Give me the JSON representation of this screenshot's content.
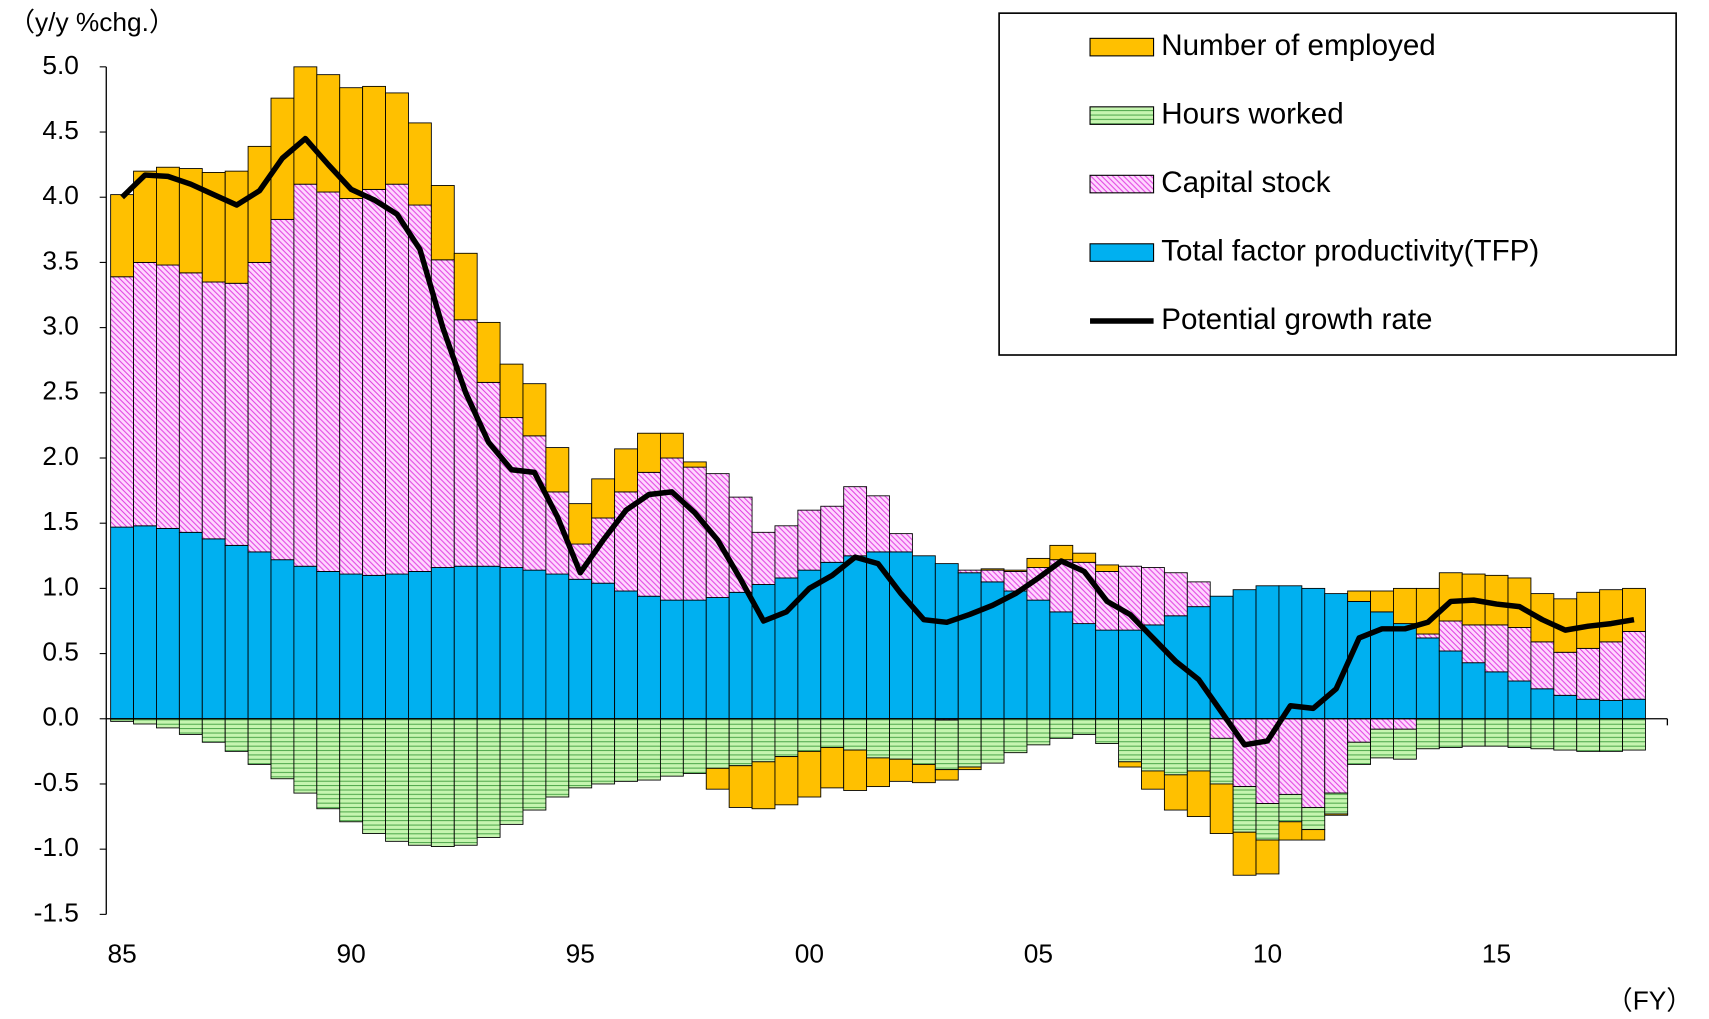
{
  "chart_data": {
    "type": "bar",
    "y_label": "（y/y %chg.）",
    "x_label": "（FY）",
    "categories": [
      "85",
      null,
      null,
      null,
      null,
      null,
      null,
      null,
      null,
      null,
      "90",
      null,
      null,
      null,
      null,
      null,
      null,
      null,
      null,
      null,
      "95",
      null,
      null,
      null,
      null,
      null,
      null,
      null,
      null,
      null,
      "00",
      null,
      null,
      null,
      null,
      null,
      null,
      null,
      null,
      null,
      "05",
      null,
      null,
      null,
      null,
      null,
      null,
      null,
      null,
      null,
      "10",
      null,
      null,
      null,
      null,
      null,
      null,
      null,
      null,
      null,
      "15",
      null,
      null,
      null,
      null,
      null,
      null
    ],
    "ylim": [
      -1.5,
      5
    ],
    "yticks": [
      {
        "value": 5,
        "label": "5.0"
      },
      4.5,
      {
        "value": 4,
        "label": "4.0"
      },
      3.5,
      {
        "value": 3,
        "label": "3.0"
      },
      2.5,
      {
        "value": 2,
        "label": "2.0"
      },
      1.5,
      {
        "value": 1,
        "label": "1.0"
      },
      0.5,
      {
        "value": 0,
        "label": "0.0"
      },
      -0.5,
      {
        "value": -1,
        "label": "-1.0"
      },
      -1.5
    ],
    "legend": "upper right",
    "series": [
      {
        "name": "Number of employed",
        "type": "bar",
        "color": "#FFC000",
        "values": [
          0.63,
          0.7,
          0.75,
          0.8,
          0.84,
          0.86,
          0.89,
          0.93,
          0.9,
          0.9,
          0.85,
          0.79,
          0.7,
          0.63,
          0.57,
          0.51,
          0.46,
          0.41,
          0.4,
          0.34,
          0.31,
          0.3,
          0.33,
          0.3,
          0.19,
          0.04,
          -0.16,
          -0.32,
          -0.36,
          -0.37,
          -0.35,
          -0.31,
          -0.31,
          -0.22,
          -0.17,
          -0.14,
          -0.08,
          -0.02,
          0.01,
          0.01,
          0.07,
          0.11,
          0.07,
          0.05,
          -0.04,
          -0.14,
          -0.27,
          -0.35,
          -0.38,
          -0.33,
          -0.26,
          -0.14,
          -0.08,
          -0.01,
          0.08,
          0.16,
          0.27,
          0.35,
          0.37,
          0.39,
          0.38,
          0.38,
          0.37,
          0.41,
          0.43,
          0.4,
          0.33
        ]
      },
      {
        "name": "Hours worked",
        "type": "bar",
        "color": "#C6F5B0",
        "values": [
          -0.02,
          -0.04,
          -0.07,
          -0.12,
          -0.18,
          -0.25,
          -0.35,
          -0.46,
          -0.57,
          -0.69,
          -0.79,
          -0.88,
          -0.94,
          -0.97,
          -0.98,
          -0.97,
          -0.91,
          -0.81,
          -0.7,
          -0.6,
          -0.53,
          -0.5,
          -0.48,
          -0.47,
          -0.44,
          -0.42,
          -0.38,
          -0.36,
          -0.33,
          -0.29,
          -0.25,
          -0.22,
          -0.24,
          -0.3,
          -0.31,
          -0.35,
          -0.38,
          -0.37,
          -0.34,
          -0.26,
          -0.2,
          -0.15,
          -0.12,
          -0.19,
          -0.33,
          -0.4,
          -0.43,
          -0.4,
          -0.35,
          -0.35,
          -0.28,
          -0.21,
          -0.17,
          -0.16,
          -0.17,
          -0.22,
          -0.23,
          -0.23,
          -0.22,
          -0.21,
          -0.21,
          -0.22,
          -0.23,
          -0.24,
          -0.25,
          -0.25,
          -0.24
        ]
      },
      {
        "name": "Capital stock",
        "type": "bar",
        "color": "#FFD6FF",
        "values": [
          1.92,
          2.02,
          2.02,
          1.99,
          1.97,
          2.01,
          2.22,
          2.61,
          2.93,
          2.91,
          2.88,
          2.96,
          2.99,
          2.81,
          2.36,
          1.89,
          1.41,
          1.15,
          1.03,
          0.63,
          0.27,
          0.5,
          0.76,
          0.95,
          1.09,
          1.02,
          0.95,
          0.73,
          0.4,
          0.4,
          0.46,
          0.43,
          0.53,
          0.43,
          0.14,
          0.0,
          -0.01,
          0.02,
          0.09,
          0.15,
          0.25,
          0.4,
          0.47,
          0.45,
          0.49,
          0.44,
          0.33,
          0.19,
          -0.15,
          -0.52,
          -0.65,
          -0.58,
          -0.68,
          -0.57,
          -0.18,
          -0.08,
          -0.08,
          0.03,
          0.23,
          0.29,
          0.36,
          0.41,
          0.36,
          0.33,
          0.39,
          0.45,
          0.52
        ]
      },
      {
        "name": "Total factor productivity(TFP)",
        "type": "bar",
        "color": "#00B0F0",
        "values": [
          1.47,
          1.48,
          1.46,
          1.43,
          1.38,
          1.33,
          1.28,
          1.22,
          1.17,
          1.13,
          1.11,
          1.1,
          1.11,
          1.13,
          1.16,
          1.17,
          1.17,
          1.16,
          1.14,
          1.11,
          1.07,
          1.04,
          0.98,
          0.94,
          0.91,
          0.91,
          0.93,
          0.97,
          1.03,
          1.08,
          1.14,
          1.2,
          1.25,
          1.28,
          1.28,
          1.25,
          1.19,
          1.12,
          1.05,
          0.98,
          0.91,
          0.82,
          0.73,
          0.68,
          0.68,
          0.72,
          0.79,
          0.86,
          0.94,
          0.99,
          1.02,
          1.02,
          1.0,
          0.96,
          0.9,
          0.82,
          0.73,
          0.62,
          0.52,
          0.43,
          0.36,
          0.29,
          0.23,
          0.18,
          0.15,
          0.14,
          0.15
        ]
      },
      {
        "name": "Potential growth rate",
        "type": "line",
        "color": "#000000",
        "values": [
          4.0,
          4.17,
          4.16,
          4.1,
          4.02,
          3.94,
          4.05,
          4.3,
          4.45,
          4.25,
          4.06,
          3.98,
          3.87,
          3.6,
          3.0,
          2.5,
          2.12,
          1.91,
          1.89,
          1.55,
          1.12,
          1.37,
          1.6,
          1.72,
          1.74,
          1.58,
          1.37,
          1.07,
          0.75,
          0.82,
          1.0,
          1.1,
          1.24,
          1.19,
          0.96,
          0.76,
          0.74,
          0.8,
          0.87,
          0.96,
          1.08,
          1.21,
          1.13,
          0.9,
          0.8,
          0.62,
          0.44,
          0.3,
          0.05,
          -0.2,
          -0.17,
          0.1,
          0.08,
          0.23,
          0.62,
          0.69,
          0.69,
          0.74,
          0.9,
          0.91,
          0.88,
          0.86,
          0.76,
          0.68,
          0.71,
          0.73,
          0.76
        ]
      }
    ]
  }
}
